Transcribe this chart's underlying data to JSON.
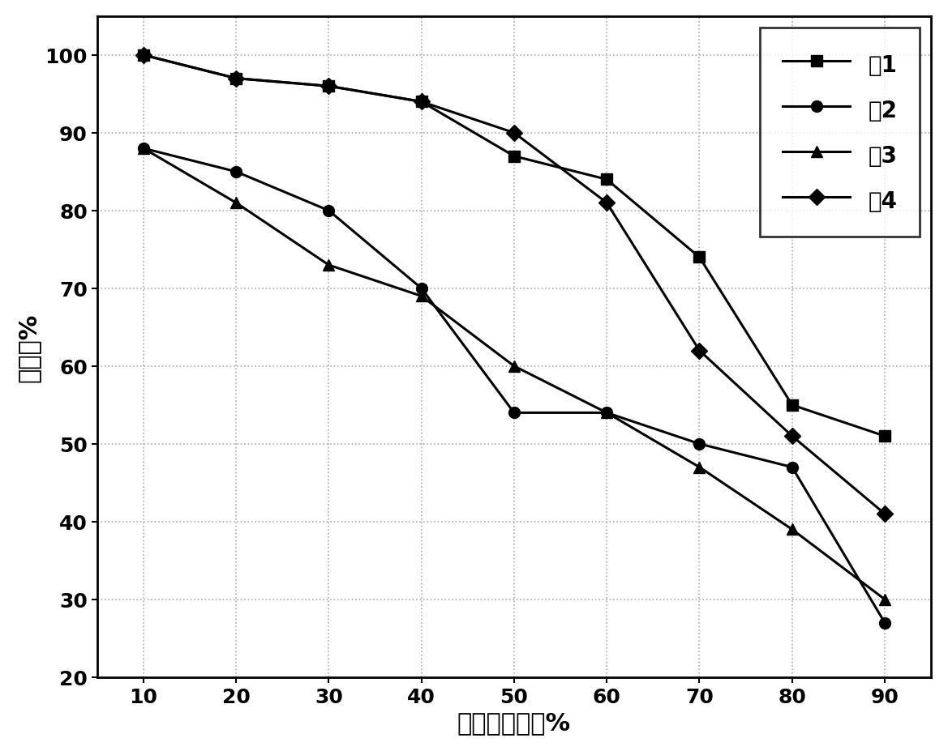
{
  "x": [
    10,
    20,
    30,
    40,
    50,
    60,
    70,
    80,
    90
  ],
  "layer1": [
    100,
    97,
    96,
    94,
    87,
    84,
    74,
    55,
    51
  ],
  "layer2": [
    88,
    85,
    80,
    70,
    54,
    54,
    50,
    47,
    27
  ],
  "layer3": [
    88,
    81,
    73,
    69,
    60,
    54,
    47,
    39,
    30
  ],
  "layer4": [
    100,
    97,
    96,
    94,
    90,
    81,
    62,
    51,
    41
  ],
  "xlabel": "检测样本数量%",
  "ylabel": "正确率%",
  "legend_labels": [
    "屲1",
    "屲2",
    "屲3",
    "屲4"
  ],
  "ylim": [
    20,
    105
  ],
  "xlim": [
    5,
    95
  ],
  "xticks": [
    10,
    20,
    30,
    40,
    50,
    60,
    70,
    80,
    90
  ],
  "yticks": [
    20,
    30,
    40,
    50,
    60,
    70,
    80,
    90,
    100
  ],
  "grid_color": "#aaaaaa",
  "line_color": "#000000",
  "background_color": "#ffffff",
  "linewidth": 2.2,
  "markersize": 10,
  "label_fontsize": 22,
  "tick_fontsize": 18,
  "legend_fontsize": 20
}
